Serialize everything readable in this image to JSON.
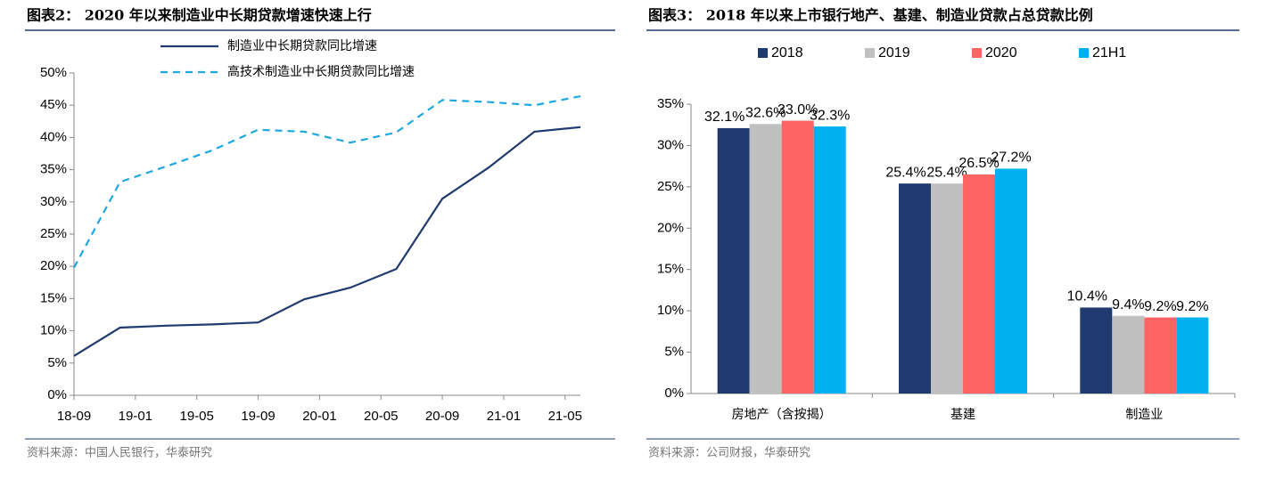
{
  "chart_data": [
    {
      "type": "line",
      "title": "图表2： 2020 年以来制造业中长期贷款增速快速上行",
      "source": "资料来源：中国人民银行，华泰研究",
      "x": [
        "18-09",
        "18-12",
        "19-03",
        "19-06",
        "19-09",
        "19-12",
        "20-03",
        "20-06",
        "20-09",
        "20-12",
        "21-03",
        "21-06"
      ],
      "series": [
        {
          "name": "制造业中长期贷款同比增速",
          "color": "#1f3a6e",
          "dash": false,
          "values": [
            6.1,
            10.5,
            10.8,
            11.0,
            11.3,
            14.9,
            16.7,
            19.6,
            30.5,
            35.3,
            40.9,
            41.6
          ]
        },
        {
          "name": "高技术制造业中长期贷款同比增速",
          "color": "#1fa8e0",
          "dash": true,
          "values": [
            19.8,
            33.1,
            35.5,
            38.0,
            41.2,
            40.9,
            39.2,
            40.8,
            45.8,
            45.5,
            45.0,
            46.4
          ]
        }
      ],
      "xlim": [
        "18-09",
        "21-06"
      ],
      "xticks": [
        "18-09",
        "19-01",
        "19-05",
        "19-09",
        "20-01",
        "20-05",
        "20-09",
        "21-01",
        "21-05"
      ],
      "ylim": [
        0,
        50
      ],
      "yticks": [
        {
          "value": 0,
          "label": "0%"
        },
        {
          "value": 5,
          "label": "5%"
        },
        {
          "value": 10,
          "label": "10%"
        },
        {
          "value": 15,
          "label": "15%"
        },
        {
          "value": 20,
          "label": "20%"
        },
        {
          "value": 25,
          "label": "25%"
        },
        {
          "value": 30,
          "label": "30%"
        },
        {
          "value": 35,
          "label": "35%"
        },
        {
          "value": 40,
          "label": "40%"
        },
        {
          "value": 45,
          "label": "45%"
        },
        {
          "value": 50,
          "label": "50%"
        }
      ],
      "grid": false
    },
    {
      "type": "bar",
      "title": "图表3： 2018 年以来上市银行地产、基建、制造业贷款占总贷款比例",
      "source": "资料来源：公司财报，华泰研究",
      "categories": [
        "房地产（含按揭）",
        "基建",
        "制造业"
      ],
      "series": [
        {
          "name": "2018",
          "color": "#1f3a6e",
          "values": [
            32.1,
            25.4,
            10.4
          ],
          "value_labels": [
            "32.1%",
            "25.4%",
            "10.4%"
          ]
        },
        {
          "name": "2019",
          "color": "#c0c0c0",
          "values": [
            32.6,
            25.4,
            9.4
          ],
          "value_labels": [
            "32.6%",
            "25.4%",
            "9.4%"
          ]
        },
        {
          "name": "2020",
          "color": "#ff6464",
          "values": [
            33.0,
            26.5,
            9.2
          ],
          "value_labels": [
            "33.0%",
            "26.5%",
            "9.2%"
          ]
        },
        {
          "name": "21H1",
          "color": "#00b0f0",
          "values": [
            32.3,
            27.2,
            9.2
          ],
          "value_labels": [
            "32.3%",
            "27.2%",
            "9.2%"
          ]
        }
      ],
      "ylim": [
        0,
        35
      ],
      "yticks": [
        {
          "value": 0,
          "label": "0%"
        },
        {
          "value": 5,
          "label": "5%"
        },
        {
          "value": 10,
          "label": "10%"
        },
        {
          "value": 15,
          "label": "15%"
        },
        {
          "value": 20,
          "label": "20%"
        },
        {
          "value": 25,
          "label": "25%"
        },
        {
          "value": 30,
          "label": "30%"
        },
        {
          "value": 35,
          "label": "35%"
        }
      ],
      "legend": "top",
      "grid": false
    }
  ]
}
